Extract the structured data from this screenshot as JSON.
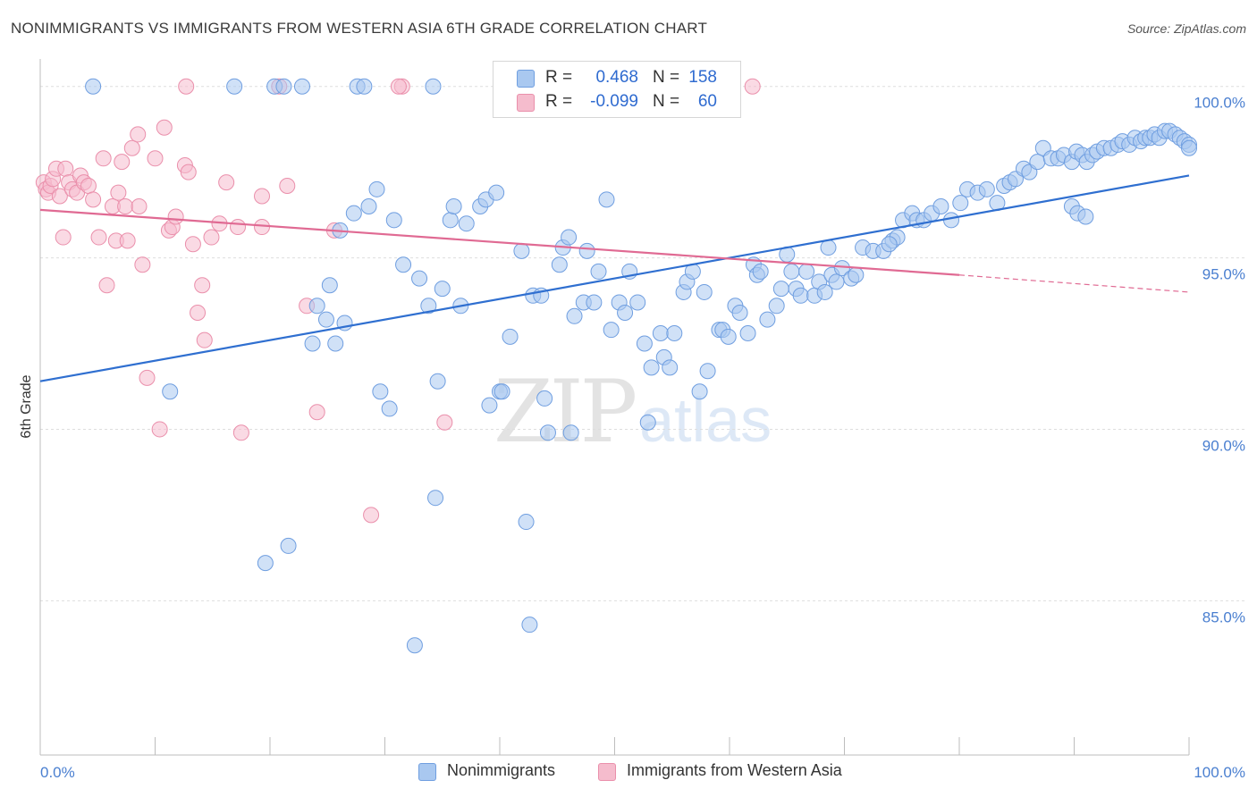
{
  "title": "NONIMMIGRANTS VS IMMIGRANTS FROM WESTERN ASIA 6TH GRADE CORRELATION CHART",
  "source": "Source: ZipAtlas.com",
  "watermark": {
    "zip": "ZIP",
    "atlas": "atlas"
  },
  "legend": {
    "rows": [
      {
        "r_label": "R =",
        "r_value": "0.468",
        "n_label": "N =",
        "n_value": "158"
      },
      {
        "r_label": "R =",
        "r_value": "-0.099",
        "n_label": "N =",
        "n_value": "60"
      }
    ]
  },
  "colors": {
    "blue_fill": "#a9c8f0",
    "blue_stroke": "#6f9ee0",
    "blue_line": "#2f6fd0",
    "pink_fill": "#f5bccd",
    "pink_stroke": "#ea8fab",
    "pink_line": "#e06a93",
    "axis_text": "#4a7fd0",
    "grid": "#dddddd"
  },
  "chart_data": {
    "type": "scatter",
    "title": "NONIMMIGRANTS VS IMMIGRANTS FROM WESTERN ASIA 6TH GRADE CORRELATION CHART",
    "xlabel": "",
    "ylabel": "6th Grade",
    "xlim": [
      0,
      100
    ],
    "ylim": [
      80.5,
      100.8
    ],
    "y_ticks": [
      85,
      90,
      95,
      100
    ],
    "y_tick_labels": [
      "85.0%",
      "90.0%",
      "95.0%",
      "100.0%"
    ],
    "x_tick_labels": [
      "0.0%",
      "100.0%"
    ],
    "grid": "horizontal dashed",
    "legend_position": "top-center",
    "series": [
      {
        "name": "Nonimmigrants",
        "color": "#a9c8f0",
        "r": 0.468,
        "n": 158,
        "trend": {
          "x": [
            0,
            100
          ],
          "y": [
            91.4,
            97.4
          ]
        },
        "points": [
          [
            4.6,
            100
          ],
          [
            16.9,
            100
          ],
          [
            20.4,
            100
          ],
          [
            21.2,
            100
          ],
          [
            22.8,
            100
          ],
          [
            27.6,
            100
          ],
          [
            28.2,
            100
          ],
          [
            34.2,
            100
          ],
          [
            11.3,
            91.1
          ],
          [
            19.6,
            86.1
          ],
          [
            21.6,
            86.6
          ],
          [
            23.7,
            92.5
          ],
          [
            24.1,
            93.6
          ],
          [
            24.9,
            93.2
          ],
          [
            25.2,
            94.2
          ],
          [
            25.7,
            92.5
          ],
          [
            26.5,
            93.1
          ],
          [
            26.1,
            95.8
          ],
          [
            27.3,
            96.3
          ],
          [
            28.6,
            96.5
          ],
          [
            29.3,
            97
          ],
          [
            29.6,
            91.1
          ],
          [
            30.4,
            90.6
          ],
          [
            30.8,
            96.1
          ],
          [
            31.6,
            94.8
          ],
          [
            32.6,
            83.7
          ],
          [
            33.0,
            94.4
          ],
          [
            33.8,
            93.6
          ],
          [
            34.6,
            91.4
          ],
          [
            34.4,
            88
          ],
          [
            35.0,
            94.1
          ],
          [
            35.7,
            96.1
          ],
          [
            36.0,
            96.5
          ],
          [
            36.6,
            93.6
          ],
          [
            37.1,
            96
          ],
          [
            38.3,
            96.5
          ],
          [
            38.8,
            96.7
          ],
          [
            39.1,
            90.7
          ],
          [
            39.7,
            96.9
          ],
          [
            40.0,
            91.1
          ],
          [
            40.2,
            91.1
          ],
          [
            40.9,
            92.7
          ],
          [
            41.9,
            95.2
          ],
          [
            42.3,
            87.3
          ],
          [
            42.6,
            84.3
          ],
          [
            42.9,
            93.9
          ],
          [
            43.6,
            93.9
          ],
          [
            43.9,
            90.9
          ],
          [
            44.2,
            89.9
          ],
          [
            45.2,
            94.8
          ],
          [
            45.5,
            95.3
          ],
          [
            46.0,
            95.6
          ],
          [
            46.2,
            89.9
          ],
          [
            46.5,
            93.3
          ],
          [
            47.3,
            93.7
          ],
          [
            47.6,
            95.2
          ],
          [
            48.2,
            93.7
          ],
          [
            48.6,
            94.6
          ],
          [
            49.3,
            96.7
          ],
          [
            49.7,
            92.9
          ],
          [
            50.4,
            93.7
          ],
          [
            50.9,
            93.4
          ],
          [
            51.3,
            94.6
          ],
          [
            52.0,
            93.7
          ],
          [
            52.6,
            92.5
          ],
          [
            52.9,
            90.2
          ],
          [
            53.2,
            91.8
          ],
          [
            54.0,
            92.8
          ],
          [
            54.3,
            92.1
          ],
          [
            54.8,
            91.8
          ],
          [
            55.2,
            92.8
          ],
          [
            56.0,
            94
          ],
          [
            56.3,
            94.3
          ],
          [
            56.8,
            94.6
          ],
          [
            57.4,
            91.1
          ],
          [
            57.8,
            94
          ],
          [
            58.1,
            91.7
          ],
          [
            59.1,
            92.9
          ],
          [
            59.4,
            92.9
          ],
          [
            59.9,
            92.7
          ],
          [
            60.5,
            93.6
          ],
          [
            60.9,
            93.4
          ],
          [
            61.6,
            92.8
          ],
          [
            62.1,
            94.8
          ],
          [
            62.4,
            94.5
          ],
          [
            62.7,
            94.6
          ],
          [
            63.3,
            93.2
          ],
          [
            64.1,
            93.6
          ],
          [
            64.5,
            94.1
          ],
          [
            65.0,
            95.1
          ],
          [
            65.4,
            94.6
          ],
          [
            65.8,
            94.1
          ],
          [
            66.2,
            93.9
          ],
          [
            66.7,
            94.6
          ],
          [
            67.4,
            93.9
          ],
          [
            67.8,
            94.3
          ],
          [
            68.3,
            94
          ],
          [
            68.9,
            94.5
          ],
          [
            69.3,
            94.3
          ],
          [
            69.8,
            94.7
          ],
          [
            70.6,
            94.4
          ],
          [
            71.0,
            94.5
          ],
          [
            71.6,
            95.3
          ],
          [
            72.5,
            95.2
          ],
          [
            73.4,
            95.2
          ],
          [
            74.2,
            95.5
          ],
          [
            75.1,
            96.1
          ],
          [
            75.9,
            96.3
          ],
          [
            76.3,
            96.1
          ],
          [
            76.9,
            96.1
          ],
          [
            77.6,
            96.3
          ],
          [
            78.4,
            96.5
          ],
          [
            79.3,
            96.1
          ],
          [
            80.1,
            96.6
          ],
          [
            80.7,
            97
          ],
          [
            81.6,
            96.9
          ],
          [
            82.4,
            97
          ],
          [
            83.3,
            96.6
          ],
          [
            83.9,
            97.1
          ],
          [
            84.4,
            97.2
          ],
          [
            84.9,
            97.3
          ],
          [
            85.6,
            97.6
          ],
          [
            86.1,
            97.5
          ],
          [
            86.8,
            97.8
          ],
          [
            87.3,
            98.2
          ],
          [
            88.0,
            97.9
          ],
          [
            88.6,
            97.9
          ],
          [
            89.1,
            98
          ],
          [
            89.8,
            97.8
          ],
          [
            90.2,
            98.1
          ],
          [
            90.7,
            98
          ],
          [
            91.1,
            97.8
          ],
          [
            91.6,
            98
          ],
          [
            92.0,
            98.1
          ],
          [
            92.6,
            98.2
          ],
          [
            93.2,
            98.2
          ],
          [
            93.8,
            98.3
          ],
          [
            94.2,
            98.4
          ],
          [
            94.8,
            98.3
          ],
          [
            95.3,
            98.5
          ],
          [
            95.8,
            98.4
          ],
          [
            96.2,
            98.5
          ],
          [
            96.6,
            98.5
          ],
          [
            97.0,
            98.6
          ],
          [
            97.4,
            98.5
          ],
          [
            97.9,
            98.7
          ],
          [
            98.3,
            98.7
          ],
          [
            98.8,
            98.6
          ],
          [
            99.2,
            98.5
          ],
          [
            99.6,
            98.4
          ],
          [
            100,
            98.3
          ],
          [
            100,
            98.2
          ],
          [
            89.8,
            96.5
          ],
          [
            90.3,
            96.3
          ],
          [
            91.0,
            96.2
          ],
          [
            74.6,
            95.6
          ],
          [
            73.9,
            95.4
          ],
          [
            68.6,
            95.3
          ]
        ]
      },
      {
        "name": "Immigrants from Western Asia",
        "color": "#f5bccd",
        "r": -0.099,
        "n": 60,
        "trend": {
          "x": [
            0,
            80
          ],
          "y": [
            96.4,
            94.5
          ]
        },
        "trend_dashed_to": {
          "x": 100,
          "y": 94.0
        },
        "points": [
          [
            0.3,
            97.2
          ],
          [
            0.5,
            97
          ],
          [
            0.7,
            96.9
          ],
          [
            0.9,
            97.1
          ],
          [
            1.1,
            97.3
          ],
          [
            1.4,
            97.6
          ],
          [
            1.7,
            96.8
          ],
          [
            2.0,
            95.6
          ],
          [
            2.2,
            97.6
          ],
          [
            2.5,
            97.2
          ],
          [
            2.8,
            97
          ],
          [
            3.2,
            96.9
          ],
          [
            3.5,
            97.4
          ],
          [
            3.8,
            97.2
          ],
          [
            4.2,
            97.1
          ],
          [
            4.6,
            96.7
          ],
          [
            5.1,
            95.6
          ],
          [
            5.5,
            97.9
          ],
          [
            5.8,
            94.2
          ],
          [
            6.3,
            96.5
          ],
          [
            6.6,
            95.5
          ],
          [
            6.8,
            96.9
          ],
          [
            7.1,
            97.8
          ],
          [
            7.6,
            95.5
          ],
          [
            7.4,
            96.5
          ],
          [
            8.0,
            98.2
          ],
          [
            8.6,
            96.5
          ],
          [
            8.5,
            98.6
          ],
          [
            8.9,
            94.8
          ],
          [
            9.3,
            91.5
          ],
          [
            10.0,
            97.9
          ],
          [
            10.4,
            90
          ],
          [
            10.8,
            98.8
          ],
          [
            11.2,
            95.8
          ],
          [
            11.5,
            95.9
          ],
          [
            11.8,
            96.2
          ],
          [
            12.6,
            97.7
          ],
          [
            12.9,
            97.5
          ],
          [
            13.3,
            95.4
          ],
          [
            13.7,
            93.4
          ],
          [
            14.1,
            94.2
          ],
          [
            14.3,
            92.6
          ],
          [
            14.9,
            95.6
          ],
          [
            15.6,
            96
          ],
          [
            16.2,
            97.2
          ],
          [
            17.2,
            95.9
          ],
          [
            17.5,
            89.9
          ],
          [
            19.3,
            96.8
          ],
          [
            19.3,
            95.9
          ],
          [
            21.5,
            97.1
          ],
          [
            23.2,
            93.6
          ],
          [
            24.1,
            90.5
          ],
          [
            25.6,
            95.8
          ],
          [
            28.8,
            87.5
          ],
          [
            31.5,
            100
          ],
          [
            35.2,
            90.2
          ],
          [
            12.7,
            100
          ],
          [
            20.8,
            100
          ],
          [
            31.2,
            100
          ],
          [
            62.0,
            100
          ]
        ]
      }
    ]
  }
}
